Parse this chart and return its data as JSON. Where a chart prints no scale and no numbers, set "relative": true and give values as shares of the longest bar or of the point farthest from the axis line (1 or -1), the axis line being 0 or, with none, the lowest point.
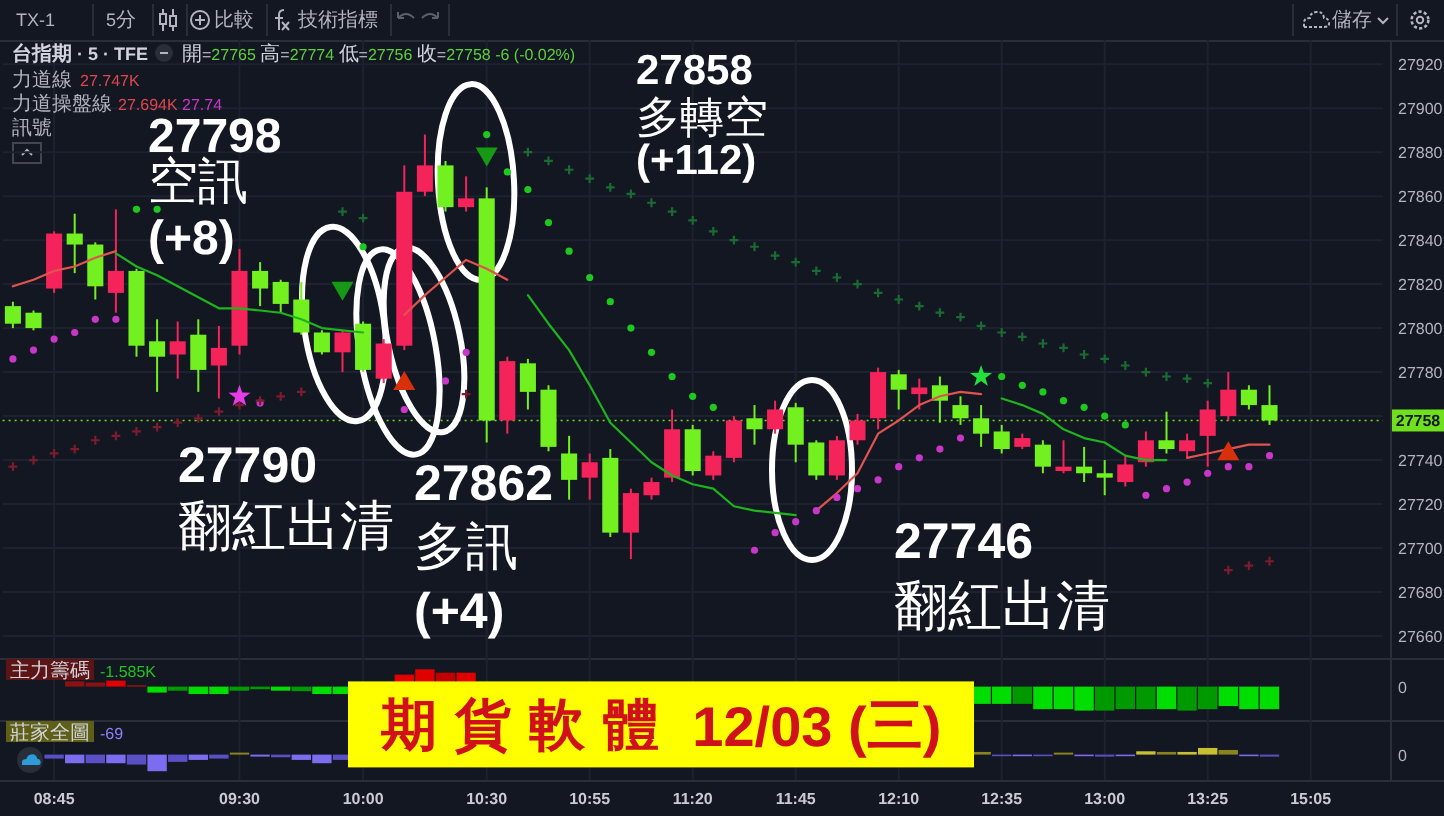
{
  "chart_data": [
    {
      "type": "candlestick",
      "title": "台指期 · 5 · TFE",
      "subtitle": "開=27765 高=27774 低=27756 收=27758 -6 (-0.02%)",
      "annotations": [
        "TX-1",
        "5分",
        "比較",
        "技術指標",
        "儲存",
        "力道線",
        "27.747K",
        "力道操盤線",
        "27.694K",
        "27.74",
        "訊號",
        "27798\n空訊\n(+8)",
        "27858\n多轉空\n(+112)",
        "27790\n翻紅出清",
        "27862\n多訊\n(+4)",
        "27746\n翻紅出清"
      ],
      "categories": [
        null,
        null,
        null,
        null,
        null,
        null,
        null,
        null,
        null,
        null,
        null,
        null,
        null,
        null,
        null,
        null,
        null,
        null,
        null,
        null,
        null,
        null,
        null,
        null,
        null,
        null,
        null,
        null,
        null,
        null,
        null,
        null,
        null,
        null,
        null,
        null,
        null,
        null,
        null,
        null,
        null,
        null,
        null,
        null,
        null,
        null,
        null,
        null,
        null,
        null,
        null,
        null,
        null,
        null,
        null,
        null,
        null,
        null,
        null,
        null,
        null,
        null,
        null,
        null,
        null,
        null,
        null
      ],
      "ohlc": [
        [
          27810,
          27812,
          27800,
          27802
        ],
        [
          27807,
          27808,
          27799,
          27800
        ],
        [
          27818,
          27844,
          27816,
          27843
        ],
        [
          27843,
          27852,
          27825,
          27838
        ],
        [
          27838,
          27839,
          27813,
          27819
        ],
        [
          27816,
          27854,
          27807,
          27826
        ],
        [
          27826,
          27827,
          27787,
          27792
        ],
        [
          27794,
          27804,
          27771,
          27787
        ],
        [
          27788,
          27803,
          27777,
          27794
        ],
        [
          27797,
          27804,
          27771,
          27781
        ],
        [
          27783,
          27801,
          27768,
          27791
        ],
        [
          27792,
          27836,
          27788,
          27826
        ],
        [
          27826,
          27830,
          27810,
          27818
        ],
        [
          27821,
          27822,
          27807,
          27811
        ],
        [
          27813,
          27821,
          27797,
          27798
        ],
        [
          27798,
          27799,
          27788,
          27789
        ],
        [
          27789,
          27799,
          27780,
          27798
        ],
        [
          27802,
          27803,
          27780,
          27781
        ],
        [
          27777,
          27795,
          27775,
          27793
        ],
        [
          27792,
          27874,
          27790,
          27862
        ],
        [
          27862,
          27888,
          27860,
          27874
        ],
        [
          27874,
          27876,
          27853,
          27855
        ],
        [
          27855,
          27869,
          27853,
          27859
        ],
        [
          27859,
          27864,
          27748,
          27758
        ],
        [
          27758,
          27787,
          27752,
          27785
        ],
        [
          27784,
          27786,
          27763,
          27771
        ],
        [
          27772,
          27774,
          27744,
          27746
        ],
        [
          27743,
          27751,
          27722,
          27731
        ],
        [
          27732,
          27743,
          27722,
          27739
        ],
        [
          27741,
          27745,
          27705,
          27707
        ],
        [
          27707,
          27727,
          27695,
          27725
        ],
        [
          27724,
          27732,
          27722,
          27730
        ],
        [
          27732,
          27763,
          27730,
          27754
        ],
        [
          27754,
          27756,
          27733,
          27735
        ],
        [
          27733,
          27744,
          27731,
          27742
        ],
        [
          27741,
          27760,
          27739,
          27758
        ],
        [
          27759,
          27765,
          27747,
          27754
        ],
        [
          27754,
          27767,
          27752,
          27763
        ],
        [
          27764,
          27766,
          27739,
          27747
        ],
        [
          27748,
          27749,
          27731,
          27733
        ],
        [
          27733,
          27751,
          27731,
          27749
        ],
        [
          27749,
          27761,
          27747,
          27758
        ],
        [
          27759,
          27782,
          27754,
          27780
        ],
        [
          27779,
          27781,
          27763,
          27772
        ],
        [
          27770,
          27777,
          27763,
          27773
        ],
        [
          27774,
          27778,
          27757,
          27767
        ],
        [
          27765,
          27769,
          27756,
          27759
        ],
        [
          27759,
          27765,
          27746,
          27752
        ],
        [
          27753,
          27756,
          27743,
          27745
        ],
        [
          27746,
          27752,
          27745,
          27750
        ],
        [
          27747,
          27749,
          27734,
          27737
        ],
        [
          27735,
          27749,
          27734,
          27737
        ],
        [
          27737,
          27746,
          27730,
          27734
        ],
        [
          27734,
          27740,
          27724,
          27732
        ],
        [
          27730,
          27742,
          27728,
          27738
        ],
        [
          27739,
          27753,
          27737,
          27749
        ],
        [
          27749,
          27762,
          27743,
          27745
        ],
        [
          27744,
          27752,
          27741,
          27749
        ],
        [
          27751,
          27767,
          27737,
          27763
        ],
        [
          27760,
          27780,
          27758,
          27772
        ],
        [
          27772,
          27774,
          27763,
          27765
        ],
        [
          27765,
          27774,
          27756,
          27758
        ],
        null,
        null,
        null,
        null,
        null
      ],
      "colors": [
        "#72f020",
        "#72f020",
        "#f4235a",
        "#72f020",
        "#72f020",
        "#f4235a",
        "#72f020",
        "#72f020",
        "#f4235a",
        "#72f020",
        "#f4235a",
        "#f4235a",
        "#72f020",
        "#72f020",
        "#72f020",
        "#72f020",
        "#f4235a",
        "#72f020",
        "#f4235a",
        "#f4235a",
        "#f4235a",
        "#72f020",
        "#f4235a",
        "#72f020",
        "#f4235a",
        "#72f020",
        "#72f020",
        "#72f020",
        "#f4235a",
        "#72f020",
        "#f4235a",
        "#f4235a",
        "#f4235a",
        "#72f020",
        "#f4235a",
        "#f4235a",
        "#72f020",
        "#f4235a",
        "#72f020",
        "#72f020",
        "#f4235a",
        "#f4235a",
        "#f4235a",
        "#72f020",
        "#f4235a",
        "#72f020",
        "#72f020",
        "#72f020",
        "#72f020",
        "#f4235a",
        "#72f020",
        "#f4235a",
        "#72f020",
        "#72f020",
        "#f4235a",
        "#f4235a",
        "#72f020",
        "#f4235a",
        "#f4235a",
        "#f4235a",
        "#72f020",
        "#72f020",
        null,
        null,
        null,
        null,
        null
      ],
      "series": [
        {
          "type": "line",
          "color": "#e0534e",
          "values": [
            27819,
            27822,
            27826,
            27828,
            27832,
            27835,
            null,
            null,
            null,
            null,
            null,
            null,
            null,
            null,
            null,
            null,
            null,
            null,
            null,
            27806,
            27815,
            27823,
            27831,
            27827,
            27822,
            null,
            null,
            null,
            null,
            null,
            null,
            null,
            null,
            null,
            null,
            null,
            null,
            null,
            null,
            27717,
            27725,
            27734,
            27752,
            27758,
            27765,
            27769,
            27771,
            27770,
            null,
            null,
            null,
            null,
            null,
            null,
            null,
            null,
            null,
            27741,
            27743,
            27745,
            27747,
            27747,
            null,
            null,
            null,
            null,
            null
          ]
        },
        {
          "type": "line",
          "color": "#1db41d",
          "values": [
            null,
            null,
            null,
            null,
            null,
            27834,
            27828,
            27824,
            27819,
            27814,
            27809,
            27809,
            27808,
            27807,
            27804,
            27800,
            27799,
            27798,
            null,
            null,
            null,
            null,
            null,
            null,
            null,
            27815,
            27802,
            27790,
            27774,
            27757,
            27748,
            27739,
            27733,
            27729,
            27727,
            27719,
            27717,
            27716,
            27715,
            null,
            null,
            null,
            null,
            null,
            null,
            null,
            null,
            null,
            27768,
            27765,
            27761,
            27754,
            27750,
            27748,
            27742,
            27740,
            27740,
            null,
            null,
            null,
            null,
            null,
            null,
            null,
            null,
            null,
            null
          ]
        },
        {
          "type": "scatter",
          "marker": "circle",
          "color": "#c837c8",
          "values": [
            27786,
            27790,
            27795,
            27798,
            27804,
            27804,
            null,
            null,
            null,
            null,
            null,
            null,
            27766,
            null,
            null,
            null,
            null,
            null,
            null,
            27763,
            null,
            27776,
            27789,
            null,
            null,
            null,
            null,
            null,
            null,
            null,
            null,
            null,
            null,
            null,
            null,
            null,
            27699,
            27707,
            27712,
            27717,
            27723,
            27727,
            27731,
            27737,
            27741,
            27745,
            27750,
            null,
            null,
            null,
            null,
            null,
            null,
            null,
            null,
            27724,
            27727,
            27730,
            27734,
            27737,
            27737,
            27742,
            null,
            null,
            null,
            null,
            null
          ]
        },
        {
          "type": "scatter",
          "marker": "cross",
          "color": "#7d1c2c",
          "values": [
            27737,
            27740,
            27743,
            27745,
            27749,
            27751,
            27753,
            27755,
            27757,
            27759,
            27762,
            27765,
            27767,
            27769,
            27771,
            null,
            null,
            null,
            null,
            null,
            null,
            null,
            27770,
            null,
            null,
            null,
            null,
            null,
            null,
            null,
            null,
            null,
            null,
            null,
            null,
            null,
            null,
            null,
            null,
            null,
            null,
            null,
            null,
            null,
            null,
            null,
            null,
            null,
            null,
            null,
            null,
            null,
            null,
            null,
            null,
            null,
            null,
            null,
            null,
            27690,
            27692,
            27694,
            null,
            null,
            null,
            null,
            null
          ]
        },
        {
          "type": "scatter",
          "marker": "circle",
          "color": "#1ec81e",
          "values": [
            null,
            null,
            null,
            null,
            null,
            null,
            27854,
            27854,
            null,
            null,
            null,
            null,
            null,
            null,
            null,
            null,
            null,
            27837,
            null,
            null,
            null,
            null,
            null,
            27888,
            27871,
            27863,
            27848,
            27835,
            27823,
            27812,
            27800,
            27789,
            27778,
            27769,
            27764,
            null,
            null,
            null,
            null,
            null,
            null,
            null,
            null,
            null,
            null,
            null,
            null,
            null,
            27778,
            27774,
            27771,
            27767,
            27764,
            27760,
            27756,
            null,
            null,
            null,
            null,
            null,
            null,
            null,
            null,
            null,
            null,
            null,
            null
          ]
        },
        {
          "type": "scatter",
          "marker": "cross",
          "color": "#1a6b32",
          "values": [
            null,
            null,
            null,
            null,
            null,
            null,
            null,
            null,
            null,
            null,
            null,
            null,
            null,
            null,
            null,
            null,
            27853,
            27850,
            null,
            null,
            null,
            null,
            null,
            null,
            null,
            27880,
            27876,
            27872,
            27868,
            27864,
            27861,
            27857,
            27853,
            27849,
            27844,
            27840,
            27837,
            27833,
            27830,
            27826,
            27823,
            27820,
            27816,
            27813,
            27810,
            27807,
            27805,
            27801,
            27798,
            27796,
            27793,
            27791,
            27788,
            27786,
            27783,
            27780,
            27778,
            27777,
            27775,
            null,
            null,
            null,
            null,
            null,
            null,
            null,
            null
          ]
        },
        {
          "type": "scatter",
          "marker": "star",
          "color": "#e63ce6",
          "values": [
            null,
            null,
            null,
            null,
            null,
            null,
            null,
            null,
            null,
            null,
            null,
            27769,
            null,
            null,
            null,
            null,
            null,
            null,
            null,
            null,
            null,
            null,
            null,
            null,
            null,
            null,
            null,
            null,
            null,
            null,
            null,
            null,
            null,
            null,
            null,
            null,
            null,
            null,
            null,
            null,
            null,
            null,
            null,
            null,
            null,
            null,
            null,
            null,
            null,
            null,
            null,
            null,
            null,
            null,
            null,
            null,
            null,
            null,
            null,
            null,
            null,
            null,
            null,
            null,
            null,
            null,
            null
          ]
        },
        {
          "type": "scatter",
          "marker": "star",
          "color": "#25e03c",
          "values": [
            null,
            null,
            null,
            null,
            null,
            null,
            null,
            null,
            null,
            null,
            null,
            null,
            null,
            null,
            null,
            null,
            null,
            null,
            null,
            null,
            null,
            null,
            null,
            null,
            null,
            null,
            null,
            null,
            null,
            null,
            null,
            null,
            null,
            null,
            null,
            null,
            null,
            null,
            null,
            null,
            null,
            null,
            null,
            null,
            null,
            null,
            null,
            27778,
            null,
            null,
            null,
            null,
            null,
            null,
            null,
            null,
            null,
            null,
            null,
            null,
            null,
            null,
            null,
            null,
            null,
            null,
            null
          ]
        },
        {
          "type": "scatter",
          "marker": "triangle-down",
          "color": "#169a16",
          "values": [
            null,
            null,
            null,
            null,
            null,
            null,
            null,
            null,
            null,
            null,
            null,
            null,
            null,
            null,
            null,
            null,
            27817,
            null,
            null,
            null,
            null,
            null,
            null,
            27878,
            null,
            null,
            null,
            null,
            null,
            null,
            null,
            null,
            null,
            null,
            null,
            null,
            null,
            null,
            null,
            null,
            null,
            null,
            null,
            null,
            null,
            null,
            null,
            null,
            null,
            null,
            null,
            null,
            null,
            null,
            null,
            null,
            null,
            null,
            null,
            null,
            null,
            null,
            null,
            null,
            null,
            null,
            null
          ]
        },
        {
          "type": "scatter",
          "marker": "triangle",
          "color": "#d9300c",
          "values": [
            null,
            null,
            null,
            null,
            null,
            null,
            null,
            null,
            null,
            null,
            null,
            null,
            null,
            null,
            null,
            null,
            null,
            null,
            null,
            27776,
            null,
            null,
            null,
            null,
            null,
            null,
            null,
            null,
            null,
            null,
            null,
            null,
            null,
            null,
            null,
            null,
            null,
            null,
            null,
            null,
            null,
            null,
            null,
            null,
            null,
            null,
            null,
            null,
            null,
            null,
            null,
            null,
            null,
            null,
            null,
            null,
            null,
            null,
            null,
            27744,
            null,
            null,
            null,
            null,
            null,
            null,
            null
          ]
        }
      ],
      "ylim": [
        27650,
        27931
      ],
      "yticks": [
        27660,
        27680,
        27700,
        27720,
        27740,
        {
          "value": 27760,
          "label": null
        },
        27780,
        27800,
        27820,
        27840,
        27860,
        27880,
        27900,
        27920
      ],
      "ref_lines": [
        {
          "axis": "y",
          "value": 27758,
          "label": "27758",
          "color": "#6fe01e",
          "line_style": "dotted"
        }
      ],
      "grid": true,
      "tick_labels": "y"
    },
    {
      "type": "bar",
      "relative": true,
      "title": "主力籌碼",
      "annotations": [
        "-1.585K",
        "0",
        "期貨軟體 12/03 (三)"
      ],
      "categories": [
        null,
        null,
        null,
        null,
        null,
        null,
        null,
        null,
        null,
        null,
        null,
        null,
        null,
        null,
        null,
        null,
        null,
        null,
        null,
        null,
        null,
        null,
        null,
        null,
        null,
        null,
        null,
        null,
        null,
        null,
        null,
        null,
        null,
        null,
        null,
        null,
        null,
        null,
        null,
        null,
        null,
        null,
        null,
        null,
        null,
        null,
        null,
        null,
        null,
        null,
        null,
        null,
        null,
        null,
        null,
        null,
        null,
        null,
        null,
        null,
        null,
        null,
        null,
        null,
        null,
        null,
        null
      ],
      "values": [
        null,
        null,
        null,
        0.22,
        0.17,
        0.25,
        0.06,
        -0.25,
        -0.17,
        -0.31,
        -0.31,
        -0.17,
        -0.11,
        -0.17,
        -0.19,
        -0.31,
        -0.31,
        null,
        null,
        0.5,
        0.72,
        0.58,
        0.58,
        null,
        null,
        null,
        null,
        null,
        null,
        null,
        null,
        null,
        null,
        null,
        null,
        null,
        null,
        null,
        null,
        null,
        null,
        null,
        null,
        null,
        null,
        null,
        null,
        -0.72,
        -0.72,
        -0.72,
        -0.94,
        -0.94,
        -1,
        -1,
        -0.94,
        -0.94,
        -0.94,
        -1,
        -0.94,
        -0.81,
        -0.94,
        -0.94,
        null,
        null,
        null,
        null,
        null
      ],
      "colors": [
        null,
        null,
        null,
        "#8c1212",
        "#8c1212",
        "#e00000",
        "#8c1212",
        "#00dd00",
        "#009a00",
        "#00dd00",
        "#00dd00",
        "#009a00",
        "#009a00",
        "#00dd00",
        "#009a00",
        "#00dd00",
        "#00dd00",
        null,
        null,
        "#e00000",
        "#e00000",
        "#c00000",
        "#e00000",
        null,
        null,
        null,
        null,
        null,
        null,
        null,
        null,
        null,
        null,
        null,
        null,
        null,
        null,
        null,
        null,
        null,
        null,
        null,
        null,
        null,
        null,
        null,
        null,
        "#00dd00",
        "#00dd00",
        "#009a00",
        "#00dd00",
        "#00dd00",
        "#00dd00",
        "#009a00",
        "#009a00",
        "#009a00",
        "#00dd00",
        "#009a00",
        "#009a00",
        "#00dd00",
        "#00dd00",
        "#00dd00",
        null,
        null,
        null,
        null,
        null
      ],
      "grid": "x",
      "tick_labels": false
    },
    {
      "type": "bar",
      "relative": true,
      "title": "莊家全圖",
      "annotations": [
        "-69",
        "0"
      ],
      "categories": [
        null,
        null,
        "08:45",
        null,
        null,
        null,
        null,
        null,
        null,
        null,
        null,
        "09:30",
        null,
        null,
        null,
        null,
        null,
        "10:00",
        null,
        null,
        null,
        null,
        null,
        "10:30",
        null,
        null,
        null,
        null,
        "10:55",
        null,
        null,
        null,
        null,
        "11:20",
        null,
        null,
        null,
        null,
        "11:45",
        null,
        null,
        null,
        null,
        "12:10",
        null,
        null,
        null,
        null,
        "12:35",
        null,
        null,
        null,
        null,
        "13:00",
        null,
        null,
        null,
        null,
        "13:25",
        null,
        null,
        null,
        null,
        "15:05",
        null,
        null,
        null
      ],
      "values": [
        null,
        null,
        -0.24,
        -0.52,
        -0.52,
        -0.52,
        -0.6,
        -1,
        -0.44,
        -0.32,
        -0.24,
        0.12,
        -0.12,
        -0.16,
        -0.32,
        -0.52,
        -0.32,
        null,
        null,
        null,
        null,
        null,
        null,
        null,
        null,
        null,
        null,
        null,
        null,
        null,
        null,
        null,
        null,
        null,
        null,
        null,
        null,
        null,
        null,
        null,
        null,
        null,
        null,
        null,
        null,
        null,
        null,
        0.16,
        -0.08,
        -0.08,
        -0.08,
        0.12,
        -0.08,
        -0.12,
        -0.08,
        0.2,
        0.16,
        0.16,
        0.4,
        0.28,
        -0.08,
        -0.12,
        null,
        null,
        null,
        null,
        null
      ],
      "colors": [
        null,
        null,
        "#5a4fc4",
        "#7b6cf0",
        "#5a4fc4",
        "#7b6cf0",
        "#5a4fc4",
        "#7b6cf0",
        "#5a4fc4",
        "#7b6cf0",
        "#5a4fc4",
        "#8a8420",
        "#7b6cf0",
        "#5a4fc4",
        "#7b6cf0",
        "#7b6cf0",
        "#5a4fc4",
        null,
        null,
        null,
        null,
        null,
        null,
        null,
        null,
        null,
        null,
        null,
        null,
        null,
        null,
        null,
        null,
        null,
        null,
        null,
        null,
        null,
        null,
        null,
        null,
        null,
        null,
        null,
        null,
        null,
        null,
        "#8a8420",
        "#5a4fc4",
        "#7b6cf0",
        "#5a4fc4",
        "#8a8420",
        "#7b6cf0",
        "#5a4fc4",
        "#7b6cf0",
        "#c8c030",
        "#8a8420",
        "#c8c030",
        "#c8c030",
        "#8a8420",
        "#7b6cf0",
        "#5a4fc4",
        null,
        null,
        null,
        null,
        null
      ],
      "grid": "x",
      "tick_labels": "x"
    }
  ]
}
